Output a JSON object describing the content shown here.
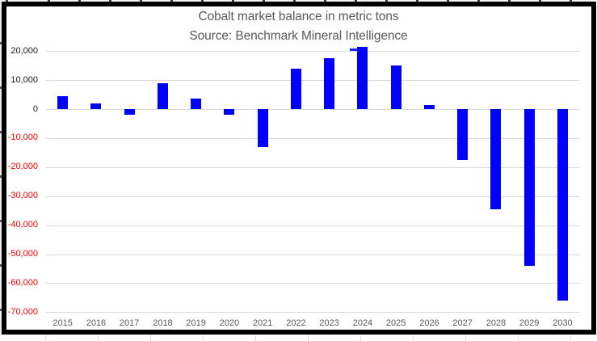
{
  "chart_data": {
    "type": "bar",
    "title": "Cobalt market balance in metric tons",
    "subtitle": "Source: Benchmark Mineral Intelligence",
    "categories": [
      "2015",
      "2016",
      "2017",
      "2018",
      "2019",
      "2020",
      "2021",
      "2022",
      "2023",
      "2024",
      "2025",
      "2026",
      "2027",
      "2028",
      "2029",
      "2030"
    ],
    "values": [
      4500,
      2000,
      -2000,
      9000,
      3500,
      -2000,
      -13000,
      14000,
      17500,
      21500,
      15000,
      1500,
      -17500,
      -34500,
      -54000,
      -66000
    ],
    "xlabel": "",
    "ylabel": "",
    "ylim": [
      -70000,
      20000
    ],
    "ytick_step": 10000,
    "ytick_labels": [
      "20,000",
      "10,000",
      "0",
      "-10,000",
      "-20,000",
      "-30,000",
      "-40,000",
      "-50,000",
      "-60,000",
      "-70,000"
    ],
    "grid": "horizontal",
    "legend": "none",
    "colors": {
      "bar": "#0000fe",
      "positive_tick_label": "#1a1a1a",
      "negative_tick_label": "#fe0000",
      "gridline": "#d9d9d9",
      "title": "#595959",
      "axis_label": "#595959",
      "frame": "#000000",
      "spellcheck_underline": "#2222ee"
    }
  }
}
